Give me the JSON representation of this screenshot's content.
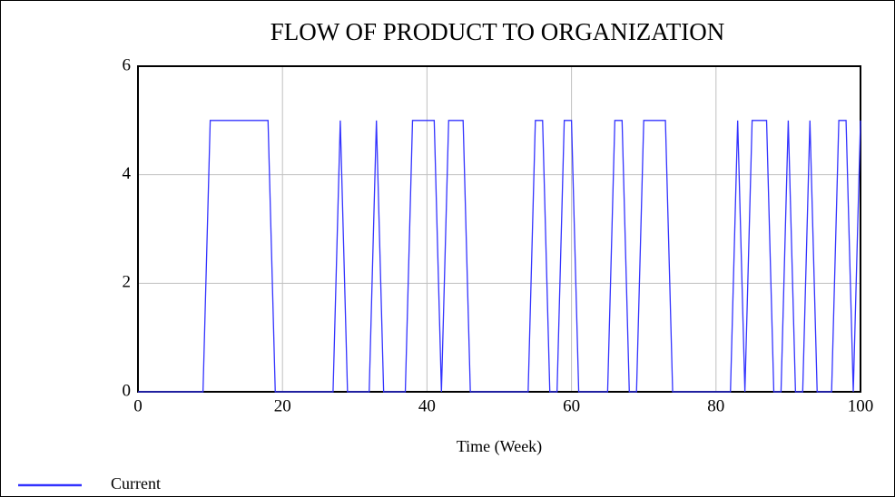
{
  "chart_data": {
    "type": "line",
    "title": "FLOW OF PRODUCT TO ORGANIZATION",
    "x_label": "Time (Week)",
    "x": [
      0,
      9,
      10,
      18,
      19,
      27,
      28,
      29,
      32,
      33,
      34,
      37,
      38,
      41,
      42,
      43,
      45,
      46,
      54,
      55,
      56,
      57,
      58,
      59,
      60,
      61,
      65,
      66,
      67,
      68,
      69,
      70,
      73,
      74,
      82,
      83,
      84,
      85,
      87,
      88,
      89,
      90,
      91,
      92,
      93,
      94,
      96,
      97,
      98,
      99,
      100
    ],
    "series": [
      {
        "name": "Current",
        "color": "#3333ff",
        "values": [
          0,
          0,
          5,
          5,
          0,
          0,
          5,
          0,
          0,
          5,
          0,
          0,
          5,
          5,
          0,
          5,
          5,
          0,
          0,
          5,
          5,
          0,
          0,
          5,
          5,
          0,
          0,
          5,
          5,
          0,
          0,
          5,
          5,
          0,
          0,
          5,
          0,
          5,
          5,
          0,
          0,
          5,
          0,
          0,
          5,
          0,
          0,
          5,
          5,
          0,
          5
        ]
      }
    ],
    "xlim": [
      0,
      100
    ],
    "xticks": [
      0,
      20,
      40,
      60,
      80,
      100
    ],
    "ylim": [
      0,
      6
    ],
    "yticks": [
      0,
      2,
      4,
      6
    ],
    "grid": true,
    "legend": "bottom-left"
  }
}
